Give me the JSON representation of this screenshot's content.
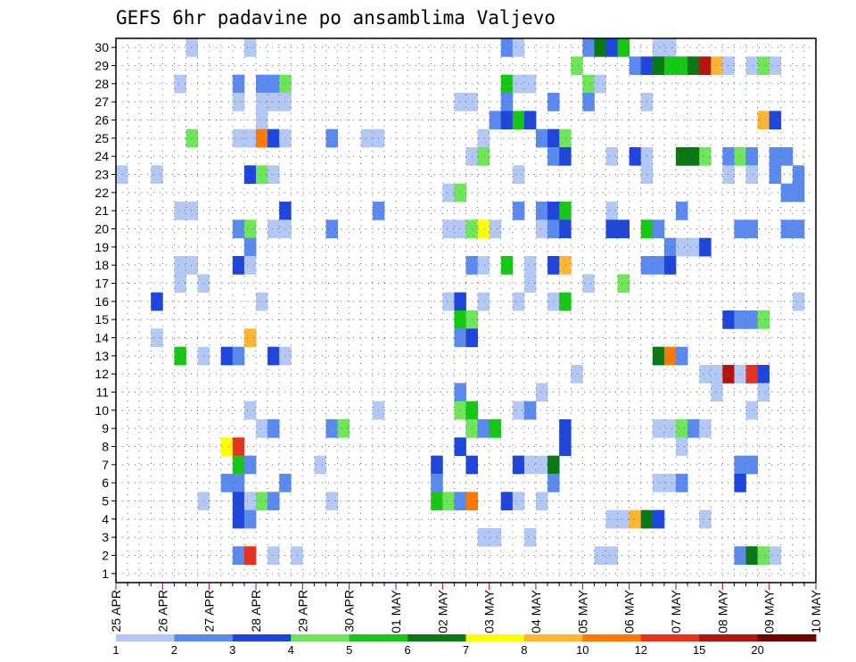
{
  "chart_data": {
    "type": "heatmap",
    "title": "GEFS 6hr padavine po ansamblima Valjevo",
    "x_tick_labels": [
      "25 APR",
      "26 APR",
      "27 APR",
      "28 APR",
      "29 APR",
      "30 APR",
      "01 MAY",
      "02 MAY",
      "03 MAY",
      "04 MAY",
      "05 MAY",
      "06 MAY",
      "07 MAY",
      "08 MAY",
      "09 MAY",
      "10 MAY"
    ],
    "y_tick_labels": [
      "1",
      "2",
      "3",
      "4",
      "5",
      "6",
      "7",
      "8",
      "9",
      "10",
      "11",
      "12",
      "13",
      "14",
      "15",
      "16",
      "17",
      "18",
      "19",
      "20",
      "21",
      "22",
      "23",
      "24",
      "25",
      "26",
      "27",
      "28",
      "29",
      "30"
    ],
    "steps_per_day": 4,
    "n_steps": 60,
    "n_members": 30,
    "grid": true,
    "legend_position": "bottom",
    "color_levels": [
      {
        "min": 1,
        "color": "#b4c8f6"
      },
      {
        "min": 2,
        "color": "#5a8af0"
      },
      {
        "min": 3,
        "color": "#1e46dc"
      },
      {
        "min": 4,
        "color": "#6ee65a"
      },
      {
        "min": 5,
        "color": "#14c814"
      },
      {
        "min": 6,
        "color": "#0a7814"
      },
      {
        "min": 7,
        "color": "#ffff00"
      },
      {
        "min": 8,
        "color": "#ffb432"
      },
      {
        "min": 10,
        "color": "#ff7800"
      },
      {
        "min": 12,
        "color": "#e6321e"
      },
      {
        "min": 15,
        "color": "#b4140a"
      },
      {
        "min": 20,
        "color": "#730000"
      }
    ],
    "legend_labels": [
      "1",
      "2",
      "3",
      "4",
      "5",
      "6",
      "7",
      "8",
      "10",
      "12",
      "15",
      "20"
    ],
    "cells": [
      [
        30,
        6,
        1
      ],
      [
        30,
        11,
        1
      ],
      [
        30,
        33,
        2
      ],
      [
        30,
        34,
        1
      ],
      [
        30,
        40,
        2
      ],
      [
        30,
        41,
        6
      ],
      [
        30,
        42,
        3
      ],
      [
        30,
        43,
        5
      ],
      [
        30,
        46,
        1
      ],
      [
        30,
        47,
        1
      ],
      [
        29,
        39,
        4
      ],
      [
        29,
        44,
        2
      ],
      [
        29,
        45,
        3
      ],
      [
        29,
        46,
        6
      ],
      [
        29,
        47,
        5
      ],
      [
        29,
        48,
        5
      ],
      [
        29,
        49,
        6
      ],
      [
        29,
        50,
        15
      ],
      [
        29,
        51,
        8
      ],
      [
        29,
        52,
        1
      ],
      [
        29,
        54,
        1
      ],
      [
        29,
        55,
        4
      ],
      [
        29,
        56,
        1
      ],
      [
        28,
        5,
        1
      ],
      [
        28,
        10,
        2
      ],
      [
        28,
        12,
        2
      ],
      [
        28,
        13,
        2
      ],
      [
        28,
        14,
        4
      ],
      [
        28,
        33,
        5
      ],
      [
        28,
        34,
        1
      ],
      [
        28,
        35,
        1
      ],
      [
        28,
        40,
        4
      ],
      [
        28,
        41,
        1
      ],
      [
        27,
        10,
        1
      ],
      [
        27,
        12,
        1
      ],
      [
        27,
        13,
        1
      ],
      [
        27,
        14,
        1
      ],
      [
        27,
        29,
        1
      ],
      [
        27,
        30,
        1
      ],
      [
        27,
        33,
        2
      ],
      [
        27,
        37,
        2
      ],
      [
        27,
        40,
        2
      ],
      [
        27,
        45,
        1
      ],
      [
        26,
        12,
        1
      ],
      [
        26,
        32,
        2
      ],
      [
        26,
        33,
        3
      ],
      [
        26,
        34,
        5
      ],
      [
        26,
        35,
        3
      ],
      [
        26,
        55,
        8
      ],
      [
        26,
        56,
        3
      ],
      [
        25,
        6,
        4
      ],
      [
        25,
        10,
        1
      ],
      [
        25,
        11,
        1
      ],
      [
        25,
        12,
        10
      ],
      [
        25,
        13,
        3
      ],
      [
        25,
        14,
        1
      ],
      [
        25,
        18,
        2
      ],
      [
        25,
        21,
        1
      ],
      [
        25,
        22,
        1
      ],
      [
        25,
        31,
        1
      ],
      [
        25,
        36,
        2
      ],
      [
        25,
        37,
        3
      ],
      [
        25,
        38,
        4
      ],
      [
        24,
        30,
        1
      ],
      [
        24,
        31,
        4
      ],
      [
        24,
        37,
        2
      ],
      [
        24,
        38,
        3
      ],
      [
        24,
        42,
        1
      ],
      [
        24,
        44,
        3
      ],
      [
        24,
        45,
        1
      ],
      [
        24,
        48,
        6
      ],
      [
        24,
        49,
        6
      ],
      [
        24,
        50,
        4
      ],
      [
        24,
        52,
        2
      ],
      [
        24,
        53,
        4
      ],
      [
        24,
        54,
        2
      ],
      [
        24,
        56,
        2
      ],
      [
        24,
        57,
        2
      ],
      [
        23,
        0,
        1
      ],
      [
        23,
        3,
        1
      ],
      [
        23,
        11,
        3
      ],
      [
        23,
        12,
        4
      ],
      [
        23,
        13,
        1
      ],
      [
        23,
        34,
        1
      ],
      [
        23,
        45,
        1
      ],
      [
        23,
        52,
        1
      ],
      [
        23,
        54,
        1
      ],
      [
        23,
        56,
        2
      ],
      [
        23,
        58,
        2
      ],
      [
        22,
        28,
        1
      ],
      [
        22,
        29,
        4
      ],
      [
        22,
        57,
        2
      ],
      [
        22,
        58,
        2
      ],
      [
        21,
        5,
        1
      ],
      [
        21,
        6,
        1
      ],
      [
        21,
        14,
        3
      ],
      [
        21,
        22,
        2
      ],
      [
        21,
        34,
        2
      ],
      [
        21,
        36,
        2
      ],
      [
        21,
        37,
        3
      ],
      [
        21,
        38,
        5
      ],
      [
        21,
        42,
        1
      ],
      [
        21,
        48,
        2
      ],
      [
        20,
        10,
        2
      ],
      [
        20,
        11,
        4
      ],
      [
        20,
        13,
        1
      ],
      [
        20,
        14,
        1
      ],
      [
        20,
        18,
        2
      ],
      [
        20,
        28,
        1
      ],
      [
        20,
        29,
        1
      ],
      [
        20,
        30,
        4
      ],
      [
        20,
        31,
        7
      ],
      [
        20,
        32,
        1
      ],
      [
        20,
        36,
        1
      ],
      [
        20,
        37,
        2
      ],
      [
        20,
        38,
        3
      ],
      [
        20,
        42,
        3
      ],
      [
        20,
        43,
        3
      ],
      [
        20,
        45,
        5
      ],
      [
        20,
        46,
        2
      ],
      [
        20,
        53,
        2
      ],
      [
        20,
        54,
        2
      ],
      [
        20,
        57,
        2
      ],
      [
        20,
        58,
        2
      ],
      [
        19,
        11,
        2
      ],
      [
        19,
        47,
        2
      ],
      [
        19,
        48,
        1
      ],
      [
        19,
        49,
        1
      ],
      [
        19,
        50,
        3
      ],
      [
        18,
        5,
        1
      ],
      [
        18,
        6,
        1
      ],
      [
        18,
        10,
        3
      ],
      [
        18,
        11,
        1
      ],
      [
        18,
        30,
        2
      ],
      [
        18,
        31,
        1
      ],
      [
        18,
        33,
        5
      ],
      [
        18,
        35,
        1
      ],
      [
        18,
        37,
        3
      ],
      [
        18,
        38,
        8
      ],
      [
        18,
        45,
        2
      ],
      [
        18,
        46,
        2
      ],
      [
        18,
        47,
        3
      ],
      [
        17,
        5,
        1
      ],
      [
        17,
        7,
        1
      ],
      [
        17,
        35,
        1
      ],
      [
        17,
        40,
        1
      ],
      [
        17,
        43,
        4
      ],
      [
        16,
        3,
        3
      ],
      [
        16,
        12,
        1
      ],
      [
        16,
        28,
        1
      ],
      [
        16,
        29,
        3
      ],
      [
        16,
        31,
        1
      ],
      [
        16,
        34,
        1
      ],
      [
        16,
        37,
        1
      ],
      [
        16,
        38,
        5
      ],
      [
        16,
        58,
        1
      ],
      [
        15,
        29,
        5
      ],
      [
        15,
        30,
        4
      ],
      [
        15,
        52,
        3
      ],
      [
        15,
        53,
        2
      ],
      [
        15,
        54,
        2
      ],
      [
        15,
        55,
        4
      ],
      [
        14,
        3,
        1
      ],
      [
        14,
        11,
        8
      ],
      [
        14,
        29,
        2
      ],
      [
        14,
        30,
        3
      ],
      [
        13,
        5,
        5
      ],
      [
        13,
        7,
        1
      ],
      [
        13,
        9,
        3
      ],
      [
        13,
        10,
        2
      ],
      [
        13,
        13,
        3
      ],
      [
        13,
        14,
        1
      ],
      [
        13,
        46,
        6
      ],
      [
        13,
        47,
        10
      ],
      [
        13,
        48,
        2
      ],
      [
        12,
        39,
        1
      ],
      [
        12,
        50,
        1
      ],
      [
        12,
        51,
        1
      ],
      [
        12,
        52,
        15
      ],
      [
        12,
        53,
        1
      ],
      [
        12,
        54,
        12
      ],
      [
        12,
        55,
        3
      ],
      [
        11,
        29,
        2
      ],
      [
        11,
        36,
        1
      ],
      [
        11,
        51,
        1
      ],
      [
        11,
        55,
        1
      ],
      [
        10,
        11,
        1
      ],
      [
        10,
        22,
        1
      ],
      [
        10,
        29,
        4
      ],
      [
        10,
        30,
        5
      ],
      [
        10,
        34,
        1
      ],
      [
        10,
        35,
        2
      ],
      [
        10,
        54,
        1
      ],
      [
        9,
        12,
        1
      ],
      [
        9,
        13,
        2
      ],
      [
        9,
        18,
        2
      ],
      [
        9,
        19,
        4
      ],
      [
        9,
        30,
        4
      ],
      [
        9,
        31,
        2
      ],
      [
        9,
        32,
        5
      ],
      [
        9,
        38,
        3
      ],
      [
        9,
        46,
        1
      ],
      [
        9,
        47,
        1
      ],
      [
        9,
        48,
        4
      ],
      [
        9,
        49,
        2
      ],
      [
        9,
        50,
        1
      ],
      [
        8,
        9,
        7
      ],
      [
        8,
        10,
        12
      ],
      [
        8,
        29,
        3
      ],
      [
        8,
        38,
        3
      ],
      [
        8,
        48,
        1
      ],
      [
        7,
        10,
        5
      ],
      [
        7,
        11,
        2
      ],
      [
        7,
        17,
        1
      ],
      [
        7,
        27,
        3
      ],
      [
        7,
        30,
        3
      ],
      [
        7,
        34,
        3
      ],
      [
        7,
        35,
        1
      ],
      [
        7,
        36,
        1
      ],
      [
        7,
        37,
        6
      ],
      [
        7,
        53,
        2
      ],
      [
        7,
        54,
        2
      ],
      [
        6,
        9,
        2
      ],
      [
        6,
        10,
        2
      ],
      [
        6,
        14,
        2
      ],
      [
        6,
        27,
        2
      ],
      [
        6,
        37,
        2
      ],
      [
        6,
        46,
        1
      ],
      [
        6,
        47,
        1
      ],
      [
        6,
        48,
        2
      ],
      [
        6,
        53,
        3
      ],
      [
        5,
        7,
        1
      ],
      [
        5,
        10,
        3
      ],
      [
        5,
        11,
        1
      ],
      [
        5,
        12,
        4
      ],
      [
        5,
        13,
        2
      ],
      [
        5,
        18,
        1
      ],
      [
        5,
        27,
        5
      ],
      [
        5,
        28,
        4
      ],
      [
        5,
        29,
        2
      ],
      [
        5,
        30,
        10
      ],
      [
        5,
        33,
        3
      ],
      [
        5,
        34,
        1
      ],
      [
        5,
        36,
        1
      ],
      [
        4,
        10,
        3
      ],
      [
        4,
        11,
        2
      ],
      [
        4,
        42,
        1
      ],
      [
        4,
        43,
        1
      ],
      [
        4,
        44,
        8
      ],
      [
        4,
        45,
        6
      ],
      [
        4,
        46,
        3
      ],
      [
        4,
        50,
        1
      ],
      [
        3,
        31,
        1
      ],
      [
        3,
        32,
        1
      ],
      [
        3,
        35,
        1
      ],
      [
        2,
        10,
        2
      ],
      [
        2,
        11,
        12
      ],
      [
        2,
        13,
        1
      ],
      [
        2,
        15,
        1
      ],
      [
        2,
        41,
        1
      ],
      [
        2,
        42,
        1
      ],
      [
        2,
        53,
        2
      ],
      [
        2,
        54,
        6
      ],
      [
        2,
        55,
        4
      ],
      [
        2,
        56,
        1
      ]
    ]
  }
}
